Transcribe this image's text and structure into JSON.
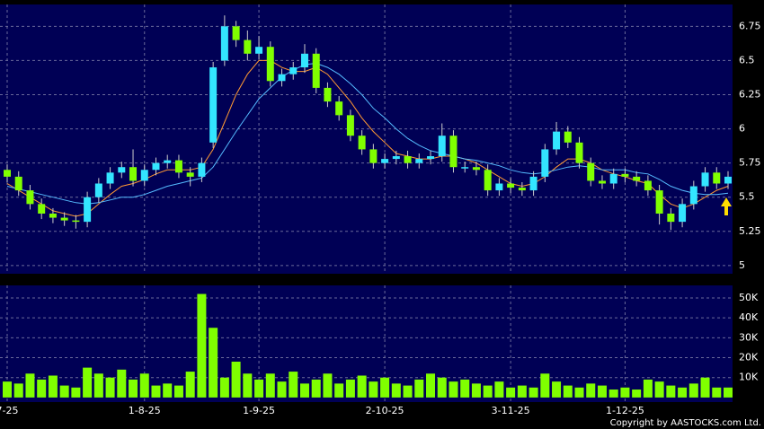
{
  "chart_data": {
    "type": "candlestick",
    "categories": [
      "7-25",
      null,
      null,
      null,
      null,
      null,
      null,
      null,
      null,
      null,
      null,
      null,
      "1-8-25",
      null,
      null,
      null,
      null,
      null,
      null,
      null,
      null,
      null,
      "1-9-25",
      null,
      null,
      null,
      null,
      null,
      null,
      null,
      null,
      null,
      null,
      "2-10-25",
      null,
      null,
      null,
      null,
      null,
      null,
      null,
      null,
      null,
      null,
      "3-11-25",
      null,
      null,
      null,
      null,
      null,
      null,
      null,
      null,
      null,
      "1-12-25",
      null,
      null,
      null,
      null,
      null,
      null,
      null,
      null,
      null
    ],
    "open": [
      5.7,
      5.65,
      5.55,
      5.45,
      5.38,
      5.35,
      5.33,
      5.32,
      5.5,
      5.6,
      5.68,
      5.72,
      5.62,
      5.7,
      5.75,
      5.77,
      5.68,
      5.65,
      5.9,
      6.5,
      6.75,
      6.65,
      6.55,
      6.6,
      6.35,
      6.4,
      6.45,
      6.55,
      6.3,
      6.2,
      6.1,
      5.95,
      5.85,
      5.75,
      5.78,
      5.8,
      5.75,
      5.78,
      5.8,
      5.95,
      5.72,
      5.72,
      5.7,
      5.55,
      5.6,
      5.57,
      5.55,
      5.65,
      5.85,
      5.98,
      5.9,
      5.75,
      5.62,
      5.6,
      5.67,
      5.65,
      5.62,
      5.55,
      5.38,
      5.32,
      5.45,
      5.58,
      5.68,
      5.6
    ],
    "high": [
      5.74,
      5.69,
      5.59,
      5.49,
      5.42,
      5.39,
      5.37,
      5.54,
      5.64,
      5.72,
      5.76,
      5.85,
      5.74,
      5.79,
      5.81,
      5.81,
      5.72,
      5.79,
      6.49,
      6.83,
      6.79,
      6.72,
      6.68,
      6.64,
      6.44,
      6.49,
      6.62,
      6.59,
      6.34,
      6.24,
      6.14,
      5.99,
      5.89,
      5.82,
      5.84,
      5.84,
      5.82,
      5.84,
      6.04,
      5.99,
      5.76,
      5.76,
      5.74,
      5.64,
      5.64,
      5.61,
      5.69,
      5.89,
      6.05,
      6.02,
      5.94,
      5.79,
      5.66,
      5.71,
      5.71,
      5.69,
      5.66,
      5.59,
      5.42,
      5.49,
      5.62,
      5.72,
      5.72,
      5.69
    ],
    "low": [
      5.61,
      5.51,
      5.41,
      5.34,
      5.31,
      5.29,
      5.27,
      5.28,
      5.46,
      5.56,
      5.64,
      5.58,
      5.58,
      5.66,
      5.71,
      5.64,
      5.58,
      5.61,
      5.86,
      6.46,
      6.6,
      6.5,
      6.51,
      6.31,
      6.31,
      6.36,
      6.41,
      6.26,
      6.16,
      6.06,
      5.91,
      5.81,
      5.71,
      5.71,
      5.74,
      5.71,
      5.71,
      5.74,
      5.76,
      5.68,
      5.68,
      5.66,
      5.51,
      5.51,
      5.53,
      5.51,
      5.51,
      5.61,
      5.81,
      5.86,
      5.71,
      5.58,
      5.56,
      5.56,
      5.61,
      5.58,
      5.51,
      5.3,
      5.26,
      5.28,
      5.41,
      5.54,
      5.56,
      5.56
    ],
    "close": [
      5.65,
      5.55,
      5.45,
      5.38,
      5.35,
      5.33,
      5.32,
      5.5,
      5.6,
      5.68,
      5.72,
      5.62,
      5.7,
      5.75,
      5.77,
      5.68,
      5.65,
      5.75,
      6.45,
      6.75,
      6.65,
      6.55,
      6.6,
      6.35,
      6.4,
      6.45,
      6.55,
      6.3,
      6.2,
      6.1,
      5.95,
      5.85,
      5.75,
      5.78,
      5.8,
      5.75,
      5.78,
      5.8,
      5.95,
      5.72,
      5.72,
      5.7,
      5.55,
      5.6,
      5.57,
      5.55,
      5.65,
      5.85,
      5.98,
      5.9,
      5.75,
      5.62,
      5.6,
      5.67,
      5.65,
      5.62,
      5.55,
      5.38,
      5.32,
      5.45,
      5.58,
      5.68,
      5.6,
      5.65
    ],
    "up_color": "#33e5ff",
    "down_color": "#80ff00",
    "lines": [
      {
        "color": "#ff9933",
        "values": [
          5.6,
          5.55,
          5.5,
          5.45,
          5.4,
          5.38,
          5.36,
          5.38,
          5.45,
          5.52,
          5.58,
          5.6,
          5.63,
          5.67,
          5.7,
          5.7,
          5.7,
          5.72,
          5.85,
          6.05,
          6.25,
          6.4,
          6.5,
          6.5,
          6.45,
          6.42,
          6.42,
          6.45,
          6.4,
          6.3,
          6.2,
          6.08,
          5.98,
          5.9,
          5.82,
          5.8,
          5.78,
          5.78,
          5.8,
          5.8,
          5.78,
          5.75,
          5.7,
          5.65,
          5.6,
          5.58,
          5.6,
          5.65,
          5.72,
          5.78,
          5.78,
          5.75,
          5.7,
          5.67,
          5.65,
          5.62,
          5.6,
          5.52,
          5.45,
          5.42,
          5.45,
          5.5,
          5.55,
          5.58
        ]
      },
      {
        "color": "#55bbff",
        "values": [
          5.58,
          5.56,
          5.54,
          5.52,
          5.5,
          5.48,
          5.46,
          5.45,
          5.46,
          5.48,
          5.5,
          5.5,
          5.52,
          5.55,
          5.58,
          5.6,
          5.62,
          5.64,
          5.72,
          5.85,
          5.98,
          6.1,
          6.22,
          6.3,
          6.38,
          6.43,
          6.47,
          6.48,
          6.45,
          6.4,
          6.33,
          6.25,
          6.15,
          6.08,
          6.0,
          5.93,
          5.88,
          5.84,
          5.82,
          5.8,
          5.78,
          5.77,
          5.75,
          5.73,
          5.7,
          5.68,
          5.67,
          5.68,
          5.7,
          5.72,
          5.73,
          5.72,
          5.7,
          5.7,
          5.7,
          5.68,
          5.67,
          5.63,
          5.58,
          5.55,
          5.53,
          5.52,
          5.52,
          5.53
        ]
      }
    ],
    "ylim": [
      4.94,
      6.91
    ],
    "yticks": [
      5,
      5.25,
      5.5,
      5.75,
      6,
      6.25,
      6.5,
      6.75
    ],
    "grid": true,
    "volume": {
      "color": "#80ff00",
      "values": [
        8000,
        7000,
        12000,
        9000,
        11000,
        6000,
        5000,
        15000,
        12000,
        10000,
        14000,
        9000,
        12000,
        6000,
        7000,
        6000,
        13000,
        52000,
        35000,
        10000,
        18000,
        12000,
        9000,
        12000,
        8000,
        13000,
        7000,
        9000,
        12000,
        7000,
        9000,
        11000,
        8000,
        10000,
        7000,
        6000,
        9000,
        12000,
        10000,
        8000,
        9000,
        7000,
        6000,
        8000,
        5000,
        6000,
        5000,
        12000,
        8000,
        6000,
        5000,
        7000,
        6000,
        4000,
        5000,
        4000,
        9000,
        8000,
        6000,
        5000,
        7000,
        10000,
        5000,
        5000
      ],
      "ylim": [
        -2300,
        56300
      ],
      "yticks": [
        {
          "value": 10000,
          "label": "10K"
        },
        {
          "value": 20000,
          "label": "20K"
        },
        {
          "value": 30000,
          "label": "30K"
        },
        {
          "value": 40000,
          "label": "40K"
        },
        {
          "value": 50000,
          "label": "50K"
        }
      ]
    },
    "source": "Copyright by AASTOCKS.com Ltd."
  }
}
